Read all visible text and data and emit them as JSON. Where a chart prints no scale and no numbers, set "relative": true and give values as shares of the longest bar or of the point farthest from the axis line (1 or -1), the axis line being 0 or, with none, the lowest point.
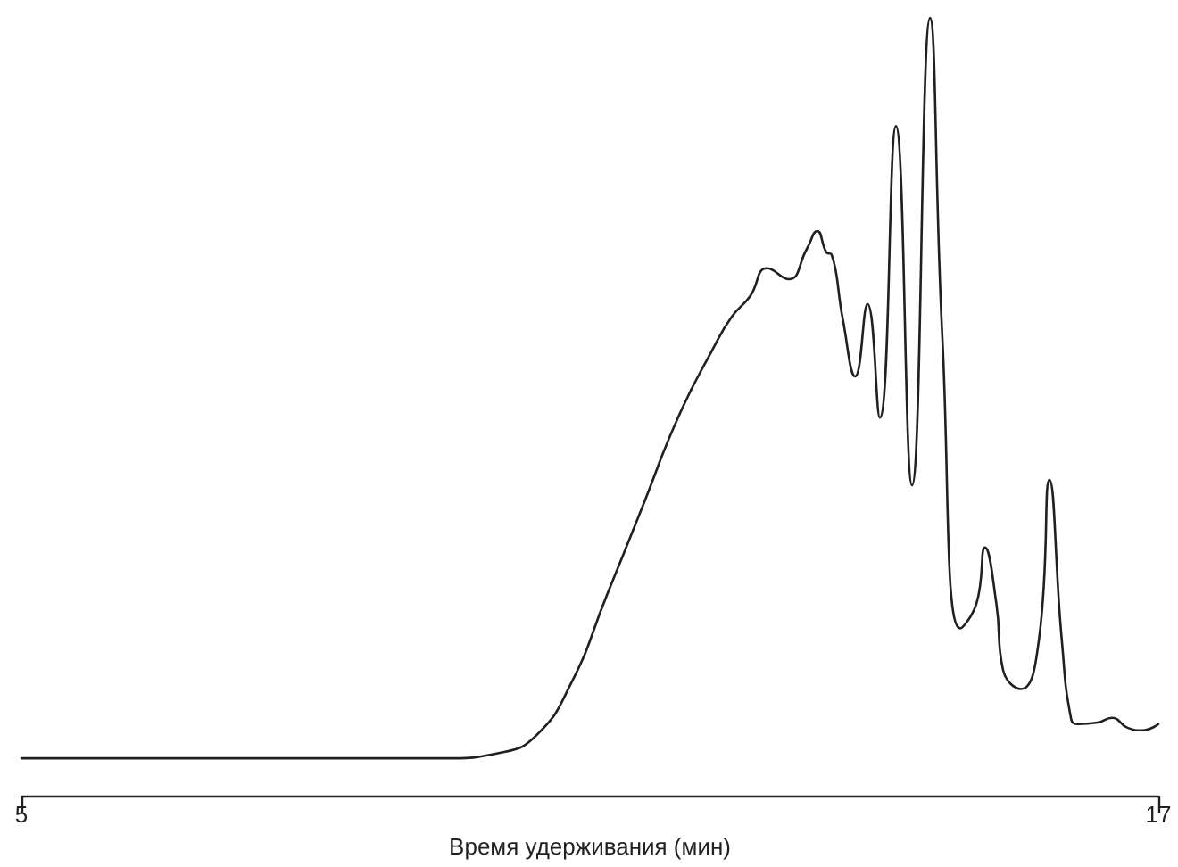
{
  "chart_data": {
    "type": "line",
    "relative": true,
    "xlabel": "Время удерживания (мин)",
    "xlim": [
      5,
      17
    ],
    "xticks": [
      5,
      17
    ],
    "grid": false,
    "marker": "none",
    "line_style": "solid",
    "x": [
      5,
      9.48,
      10.05,
      10.43,
      10.8,
      11.18,
      11.56,
      11.93,
      12.31,
      12.5,
      12.69,
      12.87,
      13.1,
      13.29,
      13.4,
      13.5,
      13.55,
      13.67,
      13.8,
      13.93,
      14.06,
      14.23,
      14.4,
      14.59,
      14.72,
      14.91,
      15.08,
      15.17,
      15.29,
      15.36,
      15.55,
      15.74,
      15.85,
      15.98,
      16.08,
      16.15,
      16.36,
      16.51,
      16.68,
      16.83,
      17
    ],
    "series": [
      {
        "color": "#231f20",
        "values": [
          0.048,
          0.048,
          0.055,
          0.077,
          0.144,
          0.258,
          0.373,
          0.486,
          0.577,
          0.616,
          0.642,
          0.678,
          0.664,
          0.703,
          0.726,
          0.698,
          0.696,
          0.612,
          0.539,
          0.632,
          0.486,
          0.861,
          0.399,
          1,
          0.589,
          0.215,
          0.247,
          0.319,
          0.247,
          0.162,
          0.137,
          0.201,
          0.406,
          0.201,
          0.098,
          0.092,
          0.094,
          0.1,
          0.087,
          0.084,
          0.092
        ]
      }
    ]
  }
}
